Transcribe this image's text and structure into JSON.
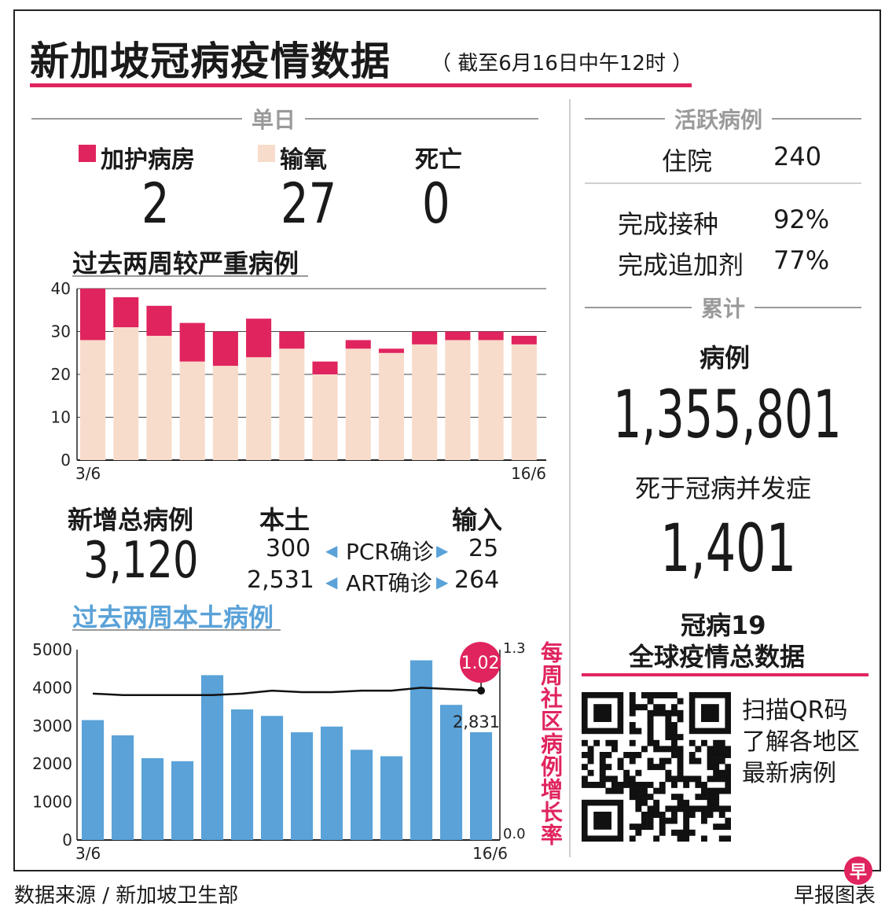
{
  "header": {
    "title": "新加坡冠病疫情数据",
    "subtitle": "（ 截至6月16日中午12时 ）"
  },
  "single_day": {
    "heading": "单日",
    "items": [
      {
        "label": "加护病房",
        "value": "2",
        "swatch": "#e0245e"
      },
      {
        "label": "输氧",
        "value": "27",
        "swatch": "#f8dccb"
      },
      {
        "label": "死亡",
        "value": "0"
      }
    ]
  },
  "new_cases": {
    "title": "新增总病例",
    "total": "3,120",
    "local_label": "本土",
    "import_label": "输入",
    "pcr_label": "PCR确诊",
    "art_label": "ART确诊",
    "pcr_local": "300",
    "pcr_import": "25",
    "art_local": "2,531",
    "art_import": "264"
  },
  "active": {
    "heading": "活跃病例",
    "hospital_label": "住院",
    "hospital_value": "240",
    "vax_label": "完成接种",
    "vax_value": "92%",
    "booster_label": "完成追加剂",
    "booster_value": "77%"
  },
  "cumulative": {
    "heading": "累计",
    "cases_label": "病例",
    "cases_value": "1,355,801",
    "deaths_label": "死于冠病并发症",
    "deaths_value": "1,401"
  },
  "global": {
    "line1": "冠病19",
    "line2": "全球疫情总数据",
    "qr_text1": "扫描QR码",
    "qr_text2": "了解各地区",
    "qr_text3": "最新病例"
  },
  "footer": {
    "source": "数据来源 / 新加坡卫生部",
    "credit": "早报图表",
    "logo_char": "早"
  },
  "colors": {
    "accent": "#e0245e",
    "oxygen": "#f8dccb",
    "bar_blue": "#5aa2d8",
    "heading_gray": "#9a9a9a"
  },
  "chart_data": [
    {
      "type": "bar",
      "title": "过去两周较严重病例",
      "x_start_label": "3/6",
      "x_end_label": "16/6",
      "ylim": [
        0,
        40
      ],
      "yticks": [
        0,
        10,
        20,
        30,
        40
      ],
      "stacked": true,
      "series": [
        {
          "name": "输氧",
          "color": "#f8dccb",
          "values": [
            28,
            31,
            29,
            23,
            22,
            24,
            26,
            20,
            26,
            25,
            27,
            28,
            28,
            27
          ]
        },
        {
          "name": "加护病房",
          "color": "#e0245e",
          "values": [
            12,
            7,
            7,
            9,
            8,
            9,
            4,
            3,
            2,
            1,
            3,
            2,
            2,
            2
          ]
        }
      ]
    },
    {
      "type": "bar",
      "title": "过去两周本土病例",
      "x_start_label": "3/6",
      "x_end_label": "16/6",
      "ylim": [
        0,
        5000
      ],
      "yticks": [
        0,
        1000,
        2000,
        3000,
        4000,
        5000
      ],
      "values": [
        3150,
        2750,
        2150,
        2070,
        4330,
        3430,
        3260,
        2830,
        2980,
        2370,
        2200,
        4720,
        3550,
        2831
      ],
      "last_value_label": "2,831",
      "y2lim": [
        0.0,
        1.3
      ],
      "y2_tick_labels": [
        "0.0",
        "1.3"
      ],
      "y2label": "每周社区病例增长率",
      "line": {
        "values": [
          1.0,
          0.99,
          0.99,
          0.99,
          0.99,
          1.0,
          1.02,
          1.01,
          1.01,
          1.02,
          1.02,
          1.04,
          1.03,
          1.02
        ]
      },
      "highlight_label": "1.02"
    }
  ]
}
